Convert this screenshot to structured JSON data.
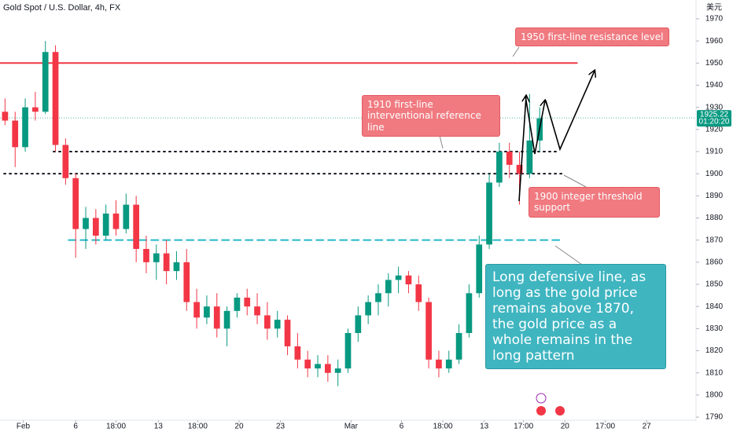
{
  "chart_data": {
    "type": "candlestick",
    "title": "Gold Spot / U.S. Dollar, 4h, FX",
    "currency": "美元",
    "up_color": "#089981",
    "down_color": "#f23645",
    "xlim": [
      0,
      69
    ],
    "ylim": [
      1788.6,
      1978.5
    ],
    "yticks": [
      1790,
      1800,
      1810,
      1820,
      1830,
      1840,
      1850,
      1860,
      1870,
      1880,
      1890,
      1900,
      1910,
      1920,
      1930,
      1940,
      1950,
      1960,
      1970
    ],
    "xticks": [
      {
        "value": 2.3,
        "label": "Feb"
      },
      {
        "value": 7.5,
        "label": "6"
      },
      {
        "value": 11.5,
        "label": "18:00"
      },
      {
        "value": 15.7,
        "label": "13"
      },
      {
        "value": 19.6,
        "label": "18:00"
      },
      {
        "value": 23.7,
        "label": "20"
      },
      {
        "value": 27.8,
        "label": "23"
      },
      {
        "value": 34.8,
        "label": "Mar"
      },
      {
        "value": 39.8,
        "label": "6"
      },
      {
        "value": 43.9,
        "label": "18:00"
      },
      {
        "value": 48,
        "label": "13"
      },
      {
        "value": 51.9,
        "label": "17:00"
      },
      {
        "value": 56,
        "label": "20"
      },
      {
        "value": 60,
        "label": "17:00"
      },
      {
        "value": 64.1,
        "label": "27"
      }
    ],
    "ohlc": [
      [
        1928,
        1934,
        1922,
        1924
      ],
      [
        1924,
        1928,
        1903,
        1912
      ],
      [
        1912,
        1934,
        1910,
        1930
      ],
      [
        1930,
        1937,
        1924,
        1928
      ],
      [
        1928,
        1960,
        1927,
        1955
      ],
      [
        1955,
        1958,
        1910,
        1913
      ],
      [
        1913,
        1916,
        1895,
        1898
      ],
      [
        1898,
        1900,
        1862,
        1875
      ],
      [
        1875,
        1885,
        1866,
        1880
      ],
      [
        1880,
        1884,
        1868,
        1872
      ],
      [
        1872,
        1886,
        1870,
        1882
      ],
      [
        1882,
        1888,
        1872,
        1875
      ],
      [
        1875,
        1891,
        1873,
        1886
      ],
      [
        1886,
        1890,
        1860,
        1866
      ],
      [
        1866,
        1872,
        1855,
        1860
      ],
      [
        1860,
        1868,
        1852,
        1864
      ],
      [
        1864,
        1870,
        1850,
        1856
      ],
      [
        1856,
        1865,
        1852,
        1860
      ],
      [
        1860,
        1866,
        1838,
        1842
      ],
      [
        1842,
        1848,
        1830,
        1835
      ],
      [
        1835,
        1845,
        1832,
        1840
      ],
      [
        1840,
        1846,
        1826,
        1830
      ],
      [
        1830,
        1840,
        1822,
        1838
      ],
      [
        1838,
        1846,
        1835,
        1844
      ],
      [
        1844,
        1848,
        1836,
        1840
      ],
      [
        1840,
        1846,
        1832,
        1836
      ],
      [
        1836,
        1842,
        1825,
        1830
      ],
      [
        1830,
        1838,
        1826,
        1834
      ],
      [
        1834,
        1836,
        1818,
        1822
      ],
      [
        1822,
        1828,
        1812,
        1816
      ],
      [
        1816,
        1820,
        1808,
        1812
      ],
      [
        1812,
        1818,
        1808,
        1814
      ],
      [
        1814,
        1818,
        1806,
        1810
      ],
      [
        1810,
        1816,
        1804,
        1812
      ],
      [
        1812,
        1830,
        1810,
        1828
      ],
      [
        1828,
        1840,
        1824,
        1836
      ],
      [
        1836,
        1845,
        1832,
        1842
      ],
      [
        1842,
        1850,
        1836,
        1846
      ],
      [
        1846,
        1855,
        1840,
        1852
      ],
      [
        1852,
        1858,
        1846,
        1854
      ],
      [
        1854,
        1856,
        1846,
        1850
      ],
      [
        1850,
        1854,
        1838,
        1842
      ],
      [
        1842,
        1844,
        1812,
        1816
      ],
      [
        1816,
        1820,
        1808,
        1812
      ],
      [
        1812,
        1820,
        1810,
        1816
      ],
      [
        1816,
        1832,
        1814,
        1828
      ],
      [
        1828,
        1850,
        1826,
        1846
      ],
      [
        1846,
        1872,
        1844,
        1868
      ],
      [
        1868,
        1900,
        1866,
        1896
      ],
      [
        1896,
        1914,
        1894,
        1910
      ],
      [
        1910,
        1914,
        1898,
        1904
      ],
      [
        1904,
        1910,
        1886,
        1900
      ],
      [
        1900,
        1936,
        1898,
        1915
      ],
      [
        1915,
        1930,
        1910,
        1925
      ]
    ],
    "last_price": 1925.22,
    "countdown": "01:20:20",
    "levels": [
      {
        "value": 1950,
        "color": "#f23645",
        "style": "solid",
        "from": 0,
        "to": 57.2
      },
      {
        "value": 1910,
        "color": "#131722",
        "style": "dotted",
        "from": 5.3,
        "to": 55.5
      },
      {
        "value": 1900,
        "color": "#131722",
        "style": "dotted",
        "from": 0.4,
        "to": 56
      },
      {
        "value": 1870,
        "color": "#22b8c8",
        "style": "dashed",
        "from": 6.8,
        "to": 55.5
      }
    ],
    "annotations": [
      "1950 first-line resistance level",
      "1910 first-line interventional reference line",
      "1900 integer threshold support",
      "Long defensive line, as long as the gold price remains above 1870, the gold price as a whole remains in the long pattern"
    ]
  }
}
